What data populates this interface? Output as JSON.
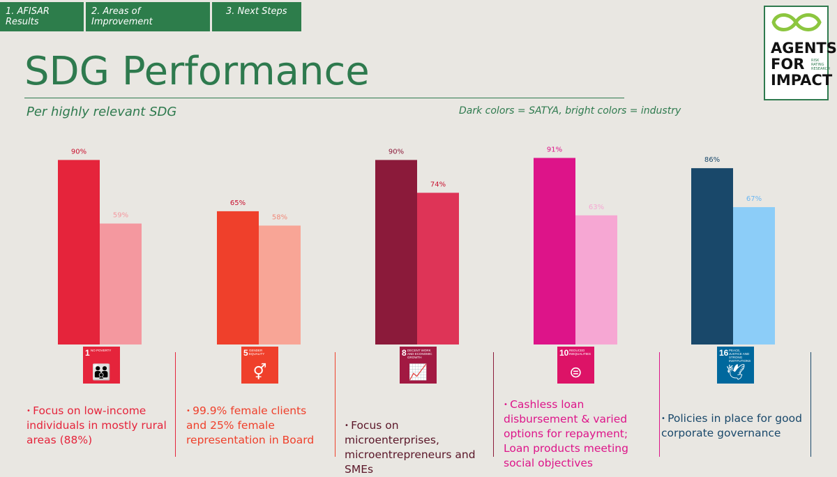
{
  "tabs": [
    "1. AFISAR Results",
    "2. Areas of Improvement",
    "3. Next Steps"
  ],
  "title": "SDG Performance",
  "subtitle": "Per highly relevant SDG",
  "note": "Dark colors = SATYA, bright colors = industry",
  "logo": {
    "line1": "AGENTS",
    "line2": "FOR",
    "line3": "IMPACT",
    "small": "RISK RATING RESEARCH"
  },
  "chart_data": {
    "type": "bar",
    "categories": [
      "1 NO POVERTY",
      "5 GENDER EQUALITY",
      "8 DECENT WORK AND ECONOMIC GROWTH",
      "10 REDUCED INEQUALITIES",
      "16 PEACE, JUSTICE AND STRONG INSTITUTIONS"
    ],
    "series": [
      {
        "values": [
          90,
          65,
          90,
          91,
          86
        ]
      },
      {
        "values": [
          59,
          58,
          74,
          63,
          67
        ]
      }
    ],
    "data_labels": [
      [
        "90%",
        "65%",
        "90%",
        "91%",
        "86%"
      ],
      [
        "59%",
        "58%",
        "74%",
        "63%",
        "67%"
      ]
    ],
    "colors": {
      "dark": [
        "#e5243b",
        "#ef402b",
        "#8b1a3a",
        "#dd1489",
        "#19486a"
      ],
      "bright": [
        "#f4989f",
        "#f8a596",
        "#de3457",
        "#f6a7d3",
        "#8ccdf8"
      ],
      "label_dark": [
        "#c8102e",
        "#c8102e",
        "#8b1a3a",
        "#dd1489",
        "#19486a"
      ],
      "label_bright": [
        "#f4989f",
        "#f08a7a",
        "#c8102e",
        "#f6a7d3",
        "#6ab6f2"
      ]
    },
    "ylim": [
      0,
      100
    ]
  },
  "sdgs": [
    {
      "num": "1",
      "label": "NO POVERTY",
      "icon": "family-icon",
      "glyph": "👪",
      "color": "#e5243b"
    },
    {
      "num": "5",
      "label": "GENDER EQUALITY",
      "icon": "gender-equality-icon",
      "glyph": "⚥",
      "color": "#ef402b"
    },
    {
      "num": "8",
      "label": "DECENT WORK AND ECONOMIC GROWTH",
      "icon": "growth-chart-icon",
      "glyph": "📈",
      "color": "#a21942"
    },
    {
      "num": "10",
      "label": "REDUCED INEQUALITIES",
      "icon": "reduced-inequalities-icon",
      "glyph": "⊜",
      "color": "#dd1367"
    },
    {
      "num": "16",
      "label": "PEACE, JUSTICE AND STRONG INSTITUTIONS",
      "icon": "dove-gavel-icon",
      "glyph": "🕊",
      "color": "#00689d"
    }
  ],
  "bullets": [
    {
      "text": "Focus on low-income individuals in mostly rural areas (88%)",
      "color": "#e5243b",
      "bullet_color": "#e5243b",
      "has_bullet": true
    },
    {
      "text": "99.9% female clients and 25% female representation in Board",
      "color": "#ef402b",
      "bullet_color": "#ef402b",
      "has_bullet": true
    },
    {
      "text": "Focus on microenterprises, microentrepreneurs and SMEs",
      "color": "#5a1628",
      "bullet_color": "#5a1628",
      "has_bullet": true
    },
    {
      "text": "Cashless loan disbursement & varied options for repayment;  Loan products meeting social objectives",
      "color": "#dd1489",
      "bullet_color": "#dd1489",
      "has_bullet": true
    },
    {
      "text": "Policies in place for good corporate governance",
      "color": "#19486a",
      "bullet_color": "#19486a",
      "has_bullet": true
    }
  ],
  "divider_colors": [
    "#e5243b",
    "#ef402b",
    "#8b1a3a",
    "#dd1489",
    "#19486a"
  ]
}
